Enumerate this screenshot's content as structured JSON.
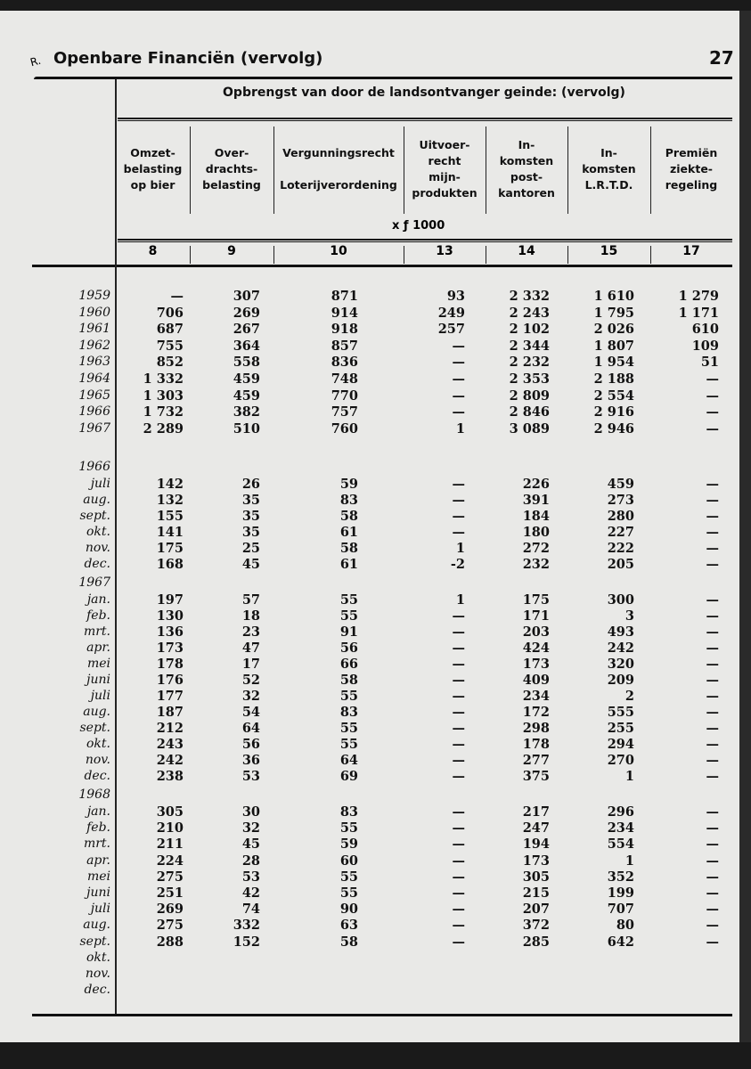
{
  "header": {
    "section_letter": "R.",
    "title": "Openbare Financiën (vervolg)",
    "page_number": "27"
  },
  "table": {
    "super_header": "Opbrengst van door de landsontvanger geinde: (vervolg)",
    "unit": "x ƒ 1000",
    "columns": [
      {
        "label": "Omzet-\nbelasting\nop bier",
        "number": "8"
      },
      {
        "label": "Over-\ndrachts-\nbelasting",
        "number": "9"
      },
      {
        "label": "Vergunningsrecht\n\nLoterijverordening",
        "number": "10"
      },
      {
        "label": "Uitvoer-\nrecht\nmijn-\nprodukten",
        "number": "13"
      },
      {
        "label": "In-\nkomsten\npost-\nkantoren",
        "number": "14"
      },
      {
        "label": "In-\nkomsten\nL.R.T.D.",
        "number": "15"
      },
      {
        "label": "Premiën\nziekte-\nregeling",
        "number": "17"
      }
    ],
    "annual": [
      {
        "label": "1959",
        "values": [
          "—",
          "307",
          "871",
          "93",
          "2 332",
          "1 610",
          "1 279"
        ]
      },
      {
        "label": "1960",
        "values": [
          "706",
          "269",
          "914",
          "249",
          "2 243",
          "1 795",
          "1 171"
        ]
      },
      {
        "label": "1961",
        "values": [
          "687",
          "267",
          "918",
          "257",
          "2 102",
          "2 026",
          "610"
        ]
      },
      {
        "label": "1962",
        "values": [
          "755",
          "364",
          "857",
          "—",
          "2 344",
          "1 807",
          "109"
        ]
      },
      {
        "label": "1963",
        "values": [
          "852",
          "558",
          "836",
          "—",
          "2 232",
          "1 954",
          "51"
        ]
      },
      {
        "label": "1964",
        "values": [
          "1 332",
          "459",
          "748",
          "—",
          "2 353",
          "2 188",
          "—"
        ]
      },
      {
        "label": "1965",
        "values": [
          "1 303",
          "459",
          "770",
          "—",
          "2 809",
          "2 554",
          "—"
        ]
      },
      {
        "label": "1966",
        "values": [
          "1 732",
          "382",
          "757",
          "—",
          "2 846",
          "2 916",
          "—"
        ]
      },
      {
        "label": "1967",
        "values": [
          "2 289",
          "510",
          "760",
          "1",
          "3 089",
          "2 946",
          "—"
        ]
      }
    ],
    "monthly": [
      {
        "year": "1966",
        "rows": [
          {
            "label": "juli",
            "values": [
              "142",
              "26",
              "59",
              "—",
              "226",
              "459",
              "—"
            ]
          },
          {
            "label": "aug.",
            "values": [
              "132",
              "35",
              "83",
              "—",
              "391",
              "273",
              "—"
            ]
          },
          {
            "label": "sept.",
            "values": [
              "155",
              "35",
              "58",
              "—",
              "184",
              "280",
              "—"
            ]
          },
          {
            "label": "okt.",
            "values": [
              "141",
              "35",
              "61",
              "—",
              "180",
              "227",
              "—"
            ]
          },
          {
            "label": "nov.",
            "values": [
              "175",
              "25",
              "58",
              "1",
              "272",
              "222",
              "—"
            ]
          },
          {
            "label": "dec.",
            "values": [
              "168",
              "45",
              "61",
              "-2",
              "232",
              "205",
              "—"
            ]
          }
        ]
      },
      {
        "year": "1967",
        "rows": [
          {
            "label": "jan.",
            "values": [
              "197",
              "57",
              "55",
              "1",
              "175",
              "300",
              "—"
            ]
          },
          {
            "label": "feb.",
            "values": [
              "130",
              "18",
              "55",
              "—",
              "171",
              "3",
              "—"
            ]
          },
          {
            "label": "mrt.",
            "values": [
              "136",
              "23",
              "91",
              "—",
              "203",
              "493",
              "—"
            ]
          },
          {
            "label": "apr.",
            "values": [
              "173",
              "47",
              "56",
              "—",
              "424",
              "242",
              "—"
            ]
          },
          {
            "label": "mei",
            "values": [
              "178",
              "17",
              "66",
              "—",
              "173",
              "320",
              "—"
            ]
          },
          {
            "label": "juni",
            "values": [
              "176",
              "52",
              "58",
              "—",
              "409",
              "209",
              "—"
            ]
          },
          {
            "label": "juli",
            "values": [
              "177",
              "32",
              "55",
              "—",
              "234",
              "2",
              "—"
            ]
          },
          {
            "label": "aug.",
            "values": [
              "187",
              "54",
              "83",
              "—",
              "172",
              "555",
              "—"
            ]
          },
          {
            "label": "sept.",
            "values": [
              "212",
              "64",
              "55",
              "—",
              "298",
              "255",
              "—"
            ]
          },
          {
            "label": "okt.",
            "values": [
              "243",
              "56",
              "55",
              "—",
              "178",
              "294",
              "—"
            ]
          },
          {
            "label": "nov.",
            "values": [
              "242",
              "36",
              "64",
              "—",
              "277",
              "270",
              "—"
            ]
          },
          {
            "label": "dec.",
            "values": [
              "238",
              "53",
              "69",
              "—",
              "375",
              "1",
              "—"
            ]
          }
        ]
      },
      {
        "year": "1968",
        "rows": [
          {
            "label": "jan.",
            "values": [
              "305",
              "30",
              "83",
              "—",
              "217",
              "296",
              "—"
            ]
          },
          {
            "label": "feb.",
            "values": [
              "210",
              "32",
              "55",
              "—",
              "247",
              "234",
              "—"
            ]
          },
          {
            "label": "mrt.",
            "values": [
              "211",
              "45",
              "59",
              "—",
              "194",
              "554",
              "—"
            ]
          },
          {
            "label": "apr.",
            "values": [
              "224",
              "28",
              "60",
              "—",
              "173",
              "1",
              "—"
            ]
          },
          {
            "label": "mei",
            "values": [
              "275",
              "53",
              "55",
              "—",
              "305",
              "352",
              "—"
            ]
          },
          {
            "label": "juni",
            "values": [
              "251",
              "42",
              "55",
              "—",
              "215",
              "199",
              "—"
            ]
          },
          {
            "label": "juli",
            "values": [
              "269",
              "74",
              "90",
              "—",
              "207",
              "707",
              "—"
            ]
          },
          {
            "label": "aug.",
            "values": [
              "275",
              "332",
              "63",
              "—",
              "372",
              "80",
              "—"
            ]
          },
          {
            "label": "sept.",
            "values": [
              "288",
              "152",
              "58",
              "—",
              "285",
              "642",
              "—"
            ]
          },
          {
            "label": "okt.",
            "values": [
              "",
              "",
              "",
              "",
              "",
              "",
              ""
            ]
          },
          {
            "label": "nov.",
            "values": [
              "",
              "",
              "",
              "",
              "",
              "",
              ""
            ]
          },
          {
            "label": "dec.",
            "values": [
              "",
              "",
              "",
              "",
              "",
              "",
              ""
            ]
          }
        ]
      }
    ]
  }
}
